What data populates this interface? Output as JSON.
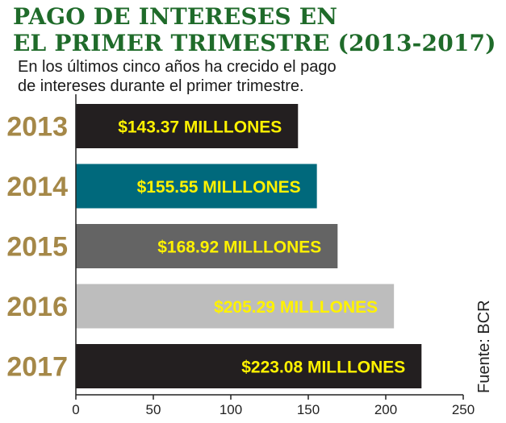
{
  "chart_data": {
    "type": "bar",
    "orientation": "horizontal",
    "title": [
      "PAGO DE INTERESES EN",
      "EL PRIMER TRIMESTRE (2013-2017)"
    ],
    "subtitle": [
      "En los últimos cinco años ha crecido el pago",
      "de intereses durante el primer trimestre."
    ],
    "categories": [
      "2013",
      "2014",
      "2015",
      "2016",
      "2017"
    ],
    "values": [
      143.37,
      155.55,
      168.92,
      205.29,
      223.08
    ],
    "data_labels": [
      "$143.37 MILLLONES",
      "$155.55 MILLLONES",
      "$168.92 MILLLONES",
      "$205.29 MILLLONES",
      "$223.08 MILLLONES"
    ],
    "bar_colors": [
      "#231f20",
      "#00697c",
      "#646464",
      "#bdbdbd",
      "#231f20"
    ],
    "label_color": "#fff200",
    "xlim": [
      0,
      250
    ],
    "xticks": [
      0,
      50,
      100,
      150,
      200,
      250
    ],
    "xtick_labels": [
      "0",
      "50",
      "100",
      "150",
      "200",
      "250"
    ],
    "grid": false,
    "source": "Fuente: BCR",
    "xlabel": "",
    "ylabel": ""
  },
  "colors": {
    "title": "#1f6b2a",
    "year_labels": "#a58848",
    "axis": "#222222"
  }
}
